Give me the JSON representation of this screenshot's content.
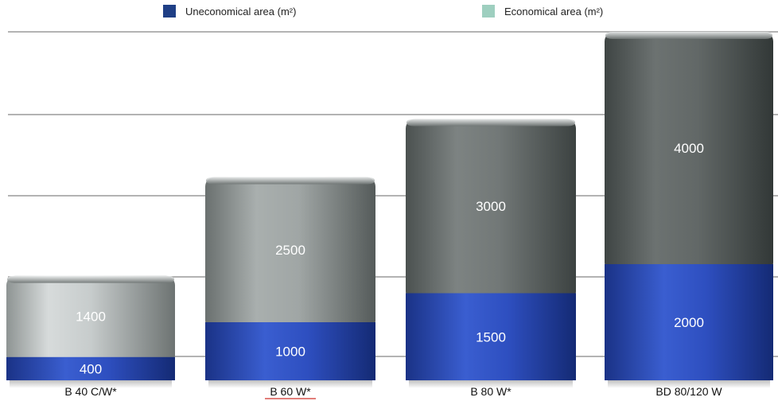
{
  "legend": {
    "items": [
      {
        "label": "Uneconomical area (m²)",
        "color": "#1f3f86"
      },
      {
        "label": "Economical area (m²)",
        "color": "#9ecfbf"
      }
    ]
  },
  "chart_data": {
    "type": "bar",
    "stacked": true,
    "categories": [
      "B 40 C/W*",
      "B 60 W*",
      "B 80 W*",
      "BD 80/120 W"
    ],
    "series": [
      {
        "name": "Uneconomical area (m²)",
        "values": [
          400,
          1000,
          1500,
          2000
        ],
        "color": "#1f3f86"
      },
      {
        "name": "Economical area (m²)",
        "values": [
          1400,
          2500,
          3000,
          4000
        ],
        "color": "#9ecfbf"
      }
    ],
    "title": "",
    "xlabel": "",
    "ylabel": "",
    "grid": true,
    "legend_position": "top"
  }
}
